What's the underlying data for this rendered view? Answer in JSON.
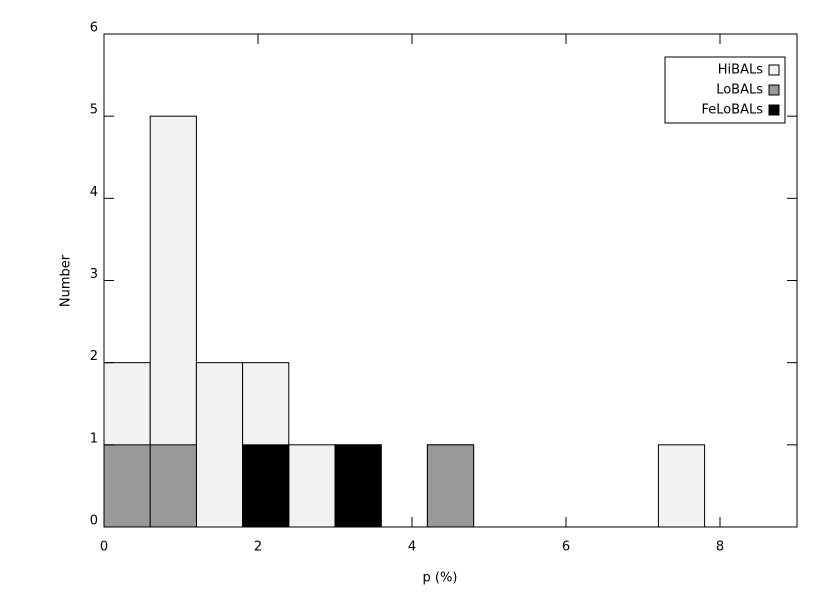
{
  "chart_data": {
    "type": "histogram",
    "xlabel": "p (%)",
    "ylabel": "Number",
    "bins": [
      0,
      0.6,
      1.2,
      1.8,
      2.4,
      3.0,
      3.6,
      4.2,
      4.8,
      5.4,
      6.0,
      6.6,
      7.2,
      7.8,
      8.4,
      9.0
    ],
    "series": [
      {
        "name": "HiBALs",
        "color": "#f2f2f2",
        "values": [
          2,
          5,
          2,
          2,
          1,
          1,
          0,
          1,
          0,
          0,
          0,
          0,
          1,
          0,
          0
        ]
      },
      {
        "name": "LoBALs",
        "color": "#999999",
        "values": [
          1,
          1,
          0,
          0,
          0,
          0,
          0,
          1,
          0,
          0,
          0,
          0,
          0,
          0,
          0
        ]
      },
      {
        "name": "FeLoBALs",
        "color": "#000000",
        "values": [
          0,
          0,
          0,
          1,
          0,
          1,
          0,
          0,
          0,
          0,
          0,
          0,
          0,
          0,
          0
        ]
      }
    ],
    "xlim": [
      0,
      9
    ],
    "xticks": [
      0,
      2,
      4,
      6,
      8
    ],
    "ylim": [
      0,
      6
    ],
    "yticks": [
      0,
      1,
      2,
      3,
      4,
      5,
      6
    ],
    "legend": "top-right"
  }
}
